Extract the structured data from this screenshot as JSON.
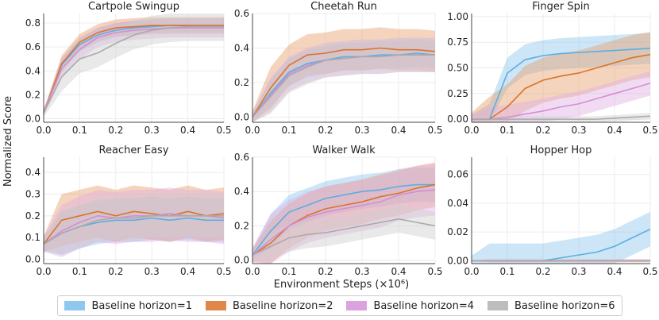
{
  "figure": {
    "shared_ylabel": "Normalized Score",
    "shared_xlabel": "Environment Steps (×10⁶)"
  },
  "legend": {
    "entries": [
      {
        "label": "Baseline horizon=1",
        "color": "#5dade2"
      },
      {
        "label": "Baseline horizon=2",
        "color": "#d9742a"
      },
      {
        "label": "Baseline horizon=4",
        "color": "#d48ed6"
      },
      {
        "label": "Baseline horizon=6",
        "color": "#aaaaaa"
      }
    ]
  },
  "chart_data": [
    {
      "type": "line",
      "title": "Cartpole Swingup",
      "x": [
        0,
        0.05,
        0.1,
        0.15,
        0.2,
        0.25,
        0.3,
        0.35,
        0.4,
        0.45,
        0.5
      ],
      "xlim": [
        0,
        0.5
      ],
      "ylim": [
        -0.03,
        0.88
      ],
      "xticks": [
        "0.0",
        "0.1",
        "0.2",
        "0.3",
        "0.4",
        "0.5"
      ],
      "xtick_values": [
        0,
        0.1,
        0.2,
        0.3,
        0.4,
        0.5
      ],
      "yticks": [
        "0.0",
        "0.2",
        "0.4",
        "0.6",
        "0.8"
      ],
      "ytick_values": [
        0,
        0.2,
        0.4,
        0.6,
        0.8
      ],
      "series": [
        {
          "name": "Baseline horizon=1",
          "values": [
            0.05,
            0.45,
            0.62,
            0.7,
            0.74,
            0.76,
            0.77,
            0.78,
            0.78,
            0.78,
            0.78
          ],
          "band": 0.06
        },
        {
          "name": "Baseline horizon=2",
          "values": [
            0.05,
            0.46,
            0.64,
            0.72,
            0.76,
            0.77,
            0.78,
            0.78,
            0.78,
            0.78,
            0.78
          ],
          "band": 0.07
        },
        {
          "name": "Baseline horizon=4",
          "values": [
            0.05,
            0.42,
            0.58,
            0.68,
            0.72,
            0.74,
            0.75,
            0.76,
            0.76,
            0.76,
            0.76
          ],
          "band": 0.08
        },
        {
          "name": "Baseline horizon=6",
          "values": [
            0.05,
            0.35,
            0.5,
            0.55,
            0.63,
            0.7,
            0.74,
            0.76,
            0.77,
            0.77,
            0.77
          ],
          "band": 0.12
        }
      ]
    },
    {
      "type": "line",
      "title": "Cheetah Run",
      "x": [
        0,
        0.05,
        0.1,
        0.15,
        0.2,
        0.25,
        0.3,
        0.35,
        0.4,
        0.45,
        0.5
      ],
      "xlim": [
        0,
        0.5
      ],
      "ylim": [
        -0.03,
        0.6
      ],
      "xticks": [
        "0.0",
        "0.1",
        "0.2",
        "0.3",
        "0.4",
        "0.5"
      ],
      "xtick_values": [
        0,
        0.1,
        0.2,
        0.3,
        0.4,
        0.5
      ],
      "yticks": [
        "0.0",
        "0.2",
        "0.4",
        "0.6"
      ],
      "ytick_values": [
        0,
        0.2,
        0.4,
        0.6
      ],
      "series": [
        {
          "name": "Baseline horizon=1",
          "values": [
            0.0,
            0.14,
            0.26,
            0.31,
            0.33,
            0.35,
            0.35,
            0.36,
            0.36,
            0.37,
            0.36
          ],
          "band": 0.08
        },
        {
          "name": "Baseline horizon=2",
          "values": [
            0.0,
            0.17,
            0.3,
            0.36,
            0.37,
            0.39,
            0.39,
            0.4,
            0.39,
            0.39,
            0.38
          ],
          "band": 0.12
        },
        {
          "name": "Baseline horizon=4",
          "values": [
            0.0,
            0.13,
            0.25,
            0.3,
            0.33,
            0.34,
            0.35,
            0.35,
            0.36,
            0.36,
            0.36
          ],
          "band": 0.1
        },
        {
          "name": "Baseline horizon=6",
          "values": [
            0.0,
            0.12,
            0.24,
            0.29,
            0.33,
            0.34,
            0.35,
            0.35,
            0.36,
            0.36,
            0.36
          ],
          "band": 0.1
        }
      ]
    },
    {
      "type": "line",
      "title": "Finger Spin",
      "x": [
        0,
        0.05,
        0.1,
        0.15,
        0.2,
        0.25,
        0.3,
        0.35,
        0.4,
        0.45,
        0.5
      ],
      "xlim": [
        0,
        0.5
      ],
      "ylim": [
        -0.03,
        1.03
      ],
      "xticks": [
        "0.0",
        "0.1",
        "0.2",
        "0.3",
        "0.4",
        "0.5"
      ],
      "xtick_values": [
        0,
        0.1,
        0.2,
        0.3,
        0.4,
        0.5
      ],
      "yticks": [
        "0.00",
        "0.25",
        "0.50",
        "0.75",
        "1.00"
      ],
      "ytick_values": [
        0,
        0.25,
        0.5,
        0.75,
        1.0
      ],
      "series": [
        {
          "name": "Baseline horizon=1",
          "values": [
            0.0,
            0.0,
            0.45,
            0.58,
            0.62,
            0.64,
            0.65,
            0.66,
            0.67,
            0.68,
            0.69
          ],
          "band": 0.15
        },
        {
          "name": "Baseline horizon=2",
          "values": [
            0.0,
            0.0,
            0.12,
            0.3,
            0.38,
            0.42,
            0.45,
            0.5,
            0.55,
            0.6,
            0.63
          ],
          "band": 0.22
        },
        {
          "name": "Baseline horizon=4",
          "values": [
            0.0,
            0.0,
            0.02,
            0.05,
            0.08,
            0.12,
            0.15,
            0.2,
            0.25,
            0.3,
            0.35
          ],
          "band": 0.12
        },
        {
          "name": "Baseline horizon=6",
          "values": [
            0.0,
            0.0,
            0.0,
            0.0,
            0.0,
            0.0,
            0.0,
            0.0,
            0.01,
            0.02,
            0.03
          ],
          "band": 0.03
        }
      ]
    },
    {
      "type": "line",
      "title": "Reacher Easy",
      "x": [
        0,
        0.05,
        0.1,
        0.15,
        0.2,
        0.25,
        0.3,
        0.35,
        0.4,
        0.45,
        0.5
      ],
      "xlim": [
        0,
        0.5
      ],
      "ylim": [
        -0.02,
        0.47
      ],
      "xticks": [
        "0.0",
        "0.1",
        "0.2",
        "0.3",
        "0.4",
        "0.5"
      ],
      "xtick_values": [
        0,
        0.1,
        0.2,
        0.3,
        0.4,
        0.5
      ],
      "yticks": [
        "0.0",
        "0.1",
        "0.2",
        "0.3",
        "0.4"
      ],
      "ytick_values": [
        0,
        0.1,
        0.2,
        0.3,
        0.4
      ],
      "series": [
        {
          "name": "Baseline horizon=1",
          "values": [
            0.07,
            0.12,
            0.15,
            0.17,
            0.18,
            0.18,
            0.19,
            0.18,
            0.19,
            0.18,
            0.18
          ],
          "band": 0.1
        },
        {
          "name": "Baseline horizon=2",
          "values": [
            0.07,
            0.18,
            0.2,
            0.22,
            0.2,
            0.22,
            0.21,
            0.2,
            0.22,
            0.2,
            0.21
          ],
          "band": 0.12
        },
        {
          "name": "Baseline horizon=4",
          "values": [
            0.07,
            0.13,
            0.17,
            0.2,
            0.19,
            0.2,
            0.2,
            0.21,
            0.2,
            0.2,
            0.19
          ],
          "band": 0.12
        },
        {
          "name": "Baseline horizon=6",
          "values": [
            0.07,
            0.12,
            0.15,
            0.18,
            0.19,
            0.19,
            0.2,
            0.2,
            0.2,
            0.2,
            0.2
          ],
          "band": 0.1
        }
      ]
    },
    {
      "type": "line",
      "title": "Walker Walk",
      "x": [
        0,
        0.05,
        0.1,
        0.15,
        0.2,
        0.25,
        0.3,
        0.35,
        0.4,
        0.45,
        0.5
      ],
      "xlim": [
        0,
        0.5
      ],
      "ylim": [
        -0.02,
        0.6
      ],
      "xticks": [
        "0.0",
        "0.1",
        "0.2",
        "0.3",
        "0.4",
        "0.5"
      ],
      "xtick_values": [
        0,
        0.1,
        0.2,
        0.3,
        0.4,
        0.5
      ],
      "yticks": [
        "0.0",
        "0.2",
        "0.4",
        "0.6"
      ],
      "ytick_values": [
        0,
        0.2,
        0.4,
        0.6
      ],
      "series": [
        {
          "name": "Baseline horizon=1",
          "values": [
            0.03,
            0.17,
            0.28,
            0.32,
            0.36,
            0.38,
            0.4,
            0.41,
            0.43,
            0.44,
            0.44
          ],
          "band": 0.1
        },
        {
          "name": "Baseline horizon=2",
          "values": [
            0.03,
            0.1,
            0.2,
            0.26,
            0.3,
            0.32,
            0.34,
            0.37,
            0.39,
            0.42,
            0.44
          ],
          "band": 0.13
        },
        {
          "name": "Baseline horizon=4",
          "values": [
            0.03,
            0.12,
            0.2,
            0.25,
            0.28,
            0.3,
            0.32,
            0.34,
            0.38,
            0.4,
            0.41
          ],
          "band": 0.15
        },
        {
          "name": "Baseline horizon=6",
          "values": [
            0.03,
            0.08,
            0.13,
            0.15,
            0.16,
            0.18,
            0.2,
            0.22,
            0.24,
            0.22,
            0.2
          ],
          "band": 0.08
        }
      ]
    },
    {
      "type": "line",
      "title": "Hopper Hop",
      "x": [
        0,
        0.05,
        0.1,
        0.15,
        0.2,
        0.25,
        0.3,
        0.35,
        0.4,
        0.45,
        0.5
      ],
      "xlim": [
        0,
        0.5
      ],
      "ylim": [
        -0.002,
        0.072
      ],
      "xticks": [
        "0.0",
        "0.1",
        "0.2",
        "0.3",
        "0.4",
        "0.5"
      ],
      "xtick_values": [
        0,
        0.1,
        0.2,
        0.3,
        0.4,
        0.5
      ],
      "yticks": [
        "0.00",
        "0.02",
        "0.04",
        "0.06"
      ],
      "ytick_values": [
        0,
        0.02,
        0.04,
        0.06
      ],
      "series": [
        {
          "name": "Baseline horizon=1",
          "values": [
            0.0,
            0.0,
            0.0,
            0.0,
            0.0,
            0.002,
            0.004,
            0.006,
            0.01,
            0.016,
            0.022
          ],
          "band": 0.012
        },
        {
          "name": "Baseline horizon=2",
          "values": [
            0.0,
            0.0,
            0.0,
            0.0,
            0.0,
            0.0,
            0.0,
            0.0,
            0.0,
            0.0,
            0.0
          ],
          "band": 0.001
        },
        {
          "name": "Baseline horizon=4",
          "values": [
            0.0,
            0.0,
            0.0,
            0.0,
            0.0,
            0.0,
            0.0,
            0.0,
            0.0,
            0.0,
            0.0
          ],
          "band": 0.001
        },
        {
          "name": "Baseline horizon=6",
          "values": [
            0.0,
            0.0,
            0.0,
            0.0,
            0.0,
            0.0,
            0.0,
            0.0,
            0.0,
            0.0,
            0.0
          ],
          "band": 0.001
        }
      ]
    }
  ]
}
